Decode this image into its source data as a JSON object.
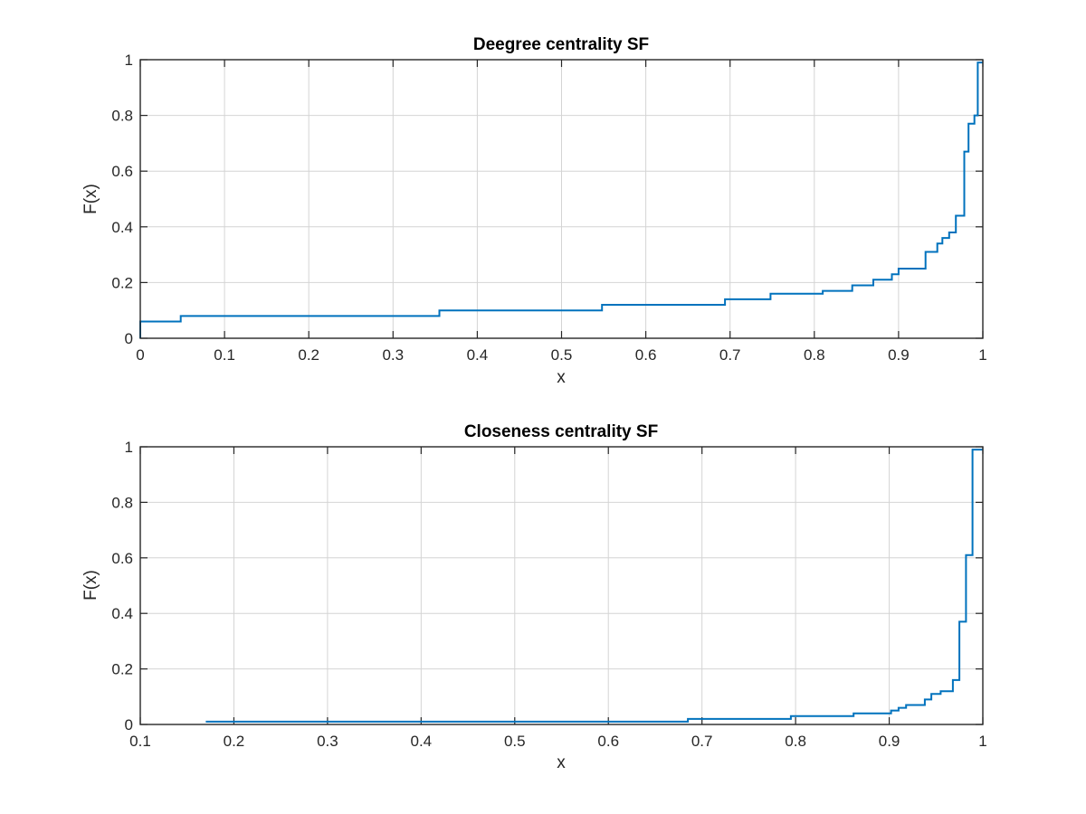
{
  "chart_data": [
    {
      "type": "line",
      "step": true,
      "title": "Deegree centrality SF",
      "xlabel": "x",
      "ylabel": "F(x)",
      "xlim": [
        0,
        1
      ],
      "ylim": [
        0,
        1
      ],
      "xticks": [
        0,
        0.1,
        0.2,
        0.3,
        0.4,
        0.5,
        0.6,
        0.7,
        0.8,
        0.9,
        1
      ],
      "xtick_labels": [
        "0",
        "0.1",
        "0.2",
        "0.3",
        "0.4",
        "0.5",
        "0.6",
        "0.7",
        "0.8",
        "0.9",
        "1"
      ],
      "yticks": [
        0,
        0.2,
        0.4,
        0.6,
        0.8,
        1
      ],
      "ytick_labels": [
        "0",
        "0.2",
        "0.4",
        "0.6",
        "0.8",
        "1"
      ],
      "grid": true,
      "color": "#0072bd",
      "series": [
        {
          "x": [
            0,
            0,
            0.048,
            0.355,
            0.548,
            0.694,
            0.748,
            0.81,
            0.845,
            0.87,
            0.892,
            0.9,
            0.932,
            0.946,
            0.952,
            0.96,
            0.968,
            0.978,
            0.983,
            0.99,
            0.994,
            1
          ],
          "y": [
            0,
            0.06,
            0.08,
            0.1,
            0.12,
            0.14,
            0.16,
            0.17,
            0.19,
            0.21,
            0.23,
            0.25,
            0.31,
            0.34,
            0.36,
            0.38,
            0.44,
            0.67,
            0.77,
            0.8,
            0.99,
            0.99
          ]
        }
      ]
    },
    {
      "type": "line",
      "step": true,
      "title": "Closeness centrality SF",
      "xlabel": "x",
      "ylabel": "F(x)",
      "xlim": [
        0.1,
        1
      ],
      "ylim": [
        0,
        1
      ],
      "xticks": [
        0.1,
        0.2,
        0.3,
        0.4,
        0.5,
        0.6,
        0.7,
        0.8,
        0.9,
        1
      ],
      "xtick_labels": [
        "0.1",
        "0.2",
        "0.3",
        "0.4",
        "0.5",
        "0.6",
        "0.7",
        "0.8",
        "0.9",
        "1"
      ],
      "yticks": [
        0,
        0.2,
        0.4,
        0.6,
        0.8,
        1
      ],
      "ytick_labels": [
        "0",
        "0.2",
        "0.4",
        "0.6",
        "0.8",
        "1"
      ],
      "grid": true,
      "color": "#0072bd",
      "series": [
        {
          "x": [
            0.17,
            0.685,
            0.795,
            0.862,
            0.902,
            0.91,
            0.918,
            0.938,
            0.945,
            0.955,
            0.968,
            0.975,
            0.982,
            0.989,
            0.995,
            1
          ],
          "y": [
            0.01,
            0.02,
            0.03,
            0.04,
            0.05,
            0.06,
            0.07,
            0.09,
            0.11,
            0.12,
            0.16,
            0.37,
            0.61,
            0.99,
            0.99,
            0.99
          ]
        }
      ]
    }
  ]
}
